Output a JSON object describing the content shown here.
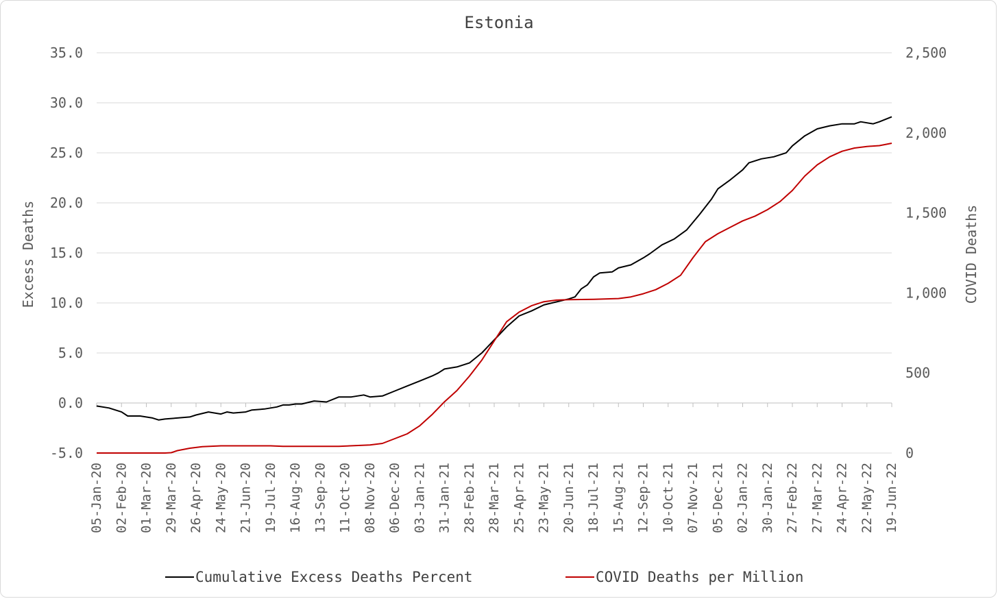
{
  "chart_data": {
    "type": "line",
    "title": "Estonia",
    "ylabel": "Excess Deaths",
    "y2label": "COVID Deaths",
    "ylim": [
      -5,
      35
    ],
    "y2lim": [
      0,
      2500
    ],
    "yticks": [
      "35.0",
      "30.0",
      "25.0",
      "20.0",
      "15.0",
      "10.0",
      "5.0",
      "0.0",
      "-5.0"
    ],
    "y2ticks": [
      "2,500",
      "2,000",
      "1,500",
      "1,000",
      "500",
      "0"
    ],
    "xlim": [
      "2020-01-05",
      "2022-06-19"
    ],
    "xticks": [
      "05-Jan-20",
      "02-Feb-20",
      "01-Mar-20",
      "29-Mar-20",
      "26-Apr-20",
      "24-May-20",
      "21-Jun-20",
      "19-Jul-20",
      "16-Aug-20",
      "13-Sep-20",
      "11-Oct-20",
      "08-Nov-20",
      "06-Dec-20",
      "03-Jan-21",
      "31-Jan-21",
      "28-Feb-21",
      "28-Mar-21",
      "25-Apr-21",
      "23-May-21",
      "20-Jun-21",
      "18-Jul-21",
      "15-Aug-21",
      "12-Sep-21",
      "10-Oct-21",
      "07-Nov-21",
      "05-Dec-21",
      "02-Jan-22",
      "30-Jan-22",
      "27-Feb-22",
      "27-Mar-22",
      "24-Apr-22",
      "22-May-22",
      "19-Jun-22"
    ],
    "grid": true,
    "legend_position": "bottom",
    "series": [
      {
        "name": "Cumulative Excess Deaths Percent",
        "axis": "left",
        "color": "#000000",
        "points": [
          [
            "2020-01-05",
            -0.3
          ],
          [
            "2020-01-19",
            -0.5
          ],
          [
            "2020-02-02",
            -0.9
          ],
          [
            "2020-02-09",
            -1.3
          ],
          [
            "2020-02-23",
            -1.3
          ],
          [
            "2020-03-08",
            -1.5
          ],
          [
            "2020-03-15",
            -1.7
          ],
          [
            "2020-03-22",
            -1.6
          ],
          [
            "2020-04-05",
            -1.5
          ],
          [
            "2020-04-19",
            -1.4
          ],
          [
            "2020-04-26",
            -1.2
          ],
          [
            "2020-05-10",
            -0.9
          ],
          [
            "2020-05-24",
            -1.1
          ],
          [
            "2020-05-31",
            -0.9
          ],
          [
            "2020-06-07",
            -1.0
          ],
          [
            "2020-06-21",
            -0.9
          ],
          [
            "2020-06-28",
            -0.7
          ],
          [
            "2020-07-12",
            -0.6
          ],
          [
            "2020-07-26",
            -0.4
          ],
          [
            "2020-08-02",
            -0.2
          ],
          [
            "2020-08-09",
            -0.2
          ],
          [
            "2020-08-16",
            -0.1
          ],
          [
            "2020-08-23",
            -0.1
          ],
          [
            "2020-09-06",
            0.2
          ],
          [
            "2020-09-20",
            0.1
          ],
          [
            "2020-10-04",
            0.6
          ],
          [
            "2020-10-18",
            0.6
          ],
          [
            "2020-11-01",
            0.8
          ],
          [
            "2020-11-08",
            0.6
          ],
          [
            "2020-11-22",
            0.7
          ],
          [
            "2020-12-06",
            1.2
          ],
          [
            "2020-12-20",
            1.7
          ],
          [
            "2021-01-03",
            2.2
          ],
          [
            "2021-01-17",
            2.7
          ],
          [
            "2021-01-24",
            3.0
          ],
          [
            "2021-01-31",
            3.4
          ],
          [
            "2021-02-14",
            3.6
          ],
          [
            "2021-02-28",
            4.0
          ],
          [
            "2021-03-14",
            5.0
          ],
          [
            "2021-03-28",
            6.3
          ],
          [
            "2021-04-11",
            7.6
          ],
          [
            "2021-04-25",
            8.7
          ],
          [
            "2021-05-09",
            9.2
          ],
          [
            "2021-05-23",
            9.8
          ],
          [
            "2021-06-06",
            10.1
          ],
          [
            "2021-06-20",
            10.4
          ],
          [
            "2021-06-27",
            10.6
          ],
          [
            "2021-07-04",
            11.4
          ],
          [
            "2021-07-11",
            11.8
          ],
          [
            "2021-07-18",
            12.6
          ],
          [
            "2021-07-25",
            13.0
          ],
          [
            "2021-08-08",
            13.1
          ],
          [
            "2021-08-15",
            13.5
          ],
          [
            "2021-08-29",
            13.8
          ],
          [
            "2021-09-12",
            14.5
          ],
          [
            "2021-09-19",
            14.9
          ],
          [
            "2021-10-03",
            15.8
          ],
          [
            "2021-10-17",
            16.4
          ],
          [
            "2021-10-31",
            17.3
          ],
          [
            "2021-11-14",
            18.8
          ],
          [
            "2021-11-28",
            20.4
          ],
          [
            "2021-12-05",
            21.4
          ],
          [
            "2021-12-19",
            22.3
          ],
          [
            "2022-01-02",
            23.3
          ],
          [
            "2022-01-09",
            24.0
          ],
          [
            "2022-01-23",
            24.4
          ],
          [
            "2022-02-06",
            24.6
          ],
          [
            "2022-02-20",
            25.0
          ],
          [
            "2022-02-27",
            25.7
          ],
          [
            "2022-03-13",
            26.7
          ],
          [
            "2022-03-27",
            27.4
          ],
          [
            "2022-04-10",
            27.7
          ],
          [
            "2022-04-24",
            27.9
          ],
          [
            "2022-05-08",
            27.9
          ],
          [
            "2022-05-15",
            28.1
          ],
          [
            "2022-05-29",
            27.9
          ],
          [
            "2022-06-05",
            28.1
          ],
          [
            "2022-06-19",
            28.6
          ]
        ]
      },
      {
        "name": "COVID Deaths per Million",
        "axis": "right",
        "color": "#c00000",
        "points": [
          [
            "2020-01-05",
            0
          ],
          [
            "2020-03-22",
            0
          ],
          [
            "2020-03-29",
            2
          ],
          [
            "2020-04-05",
            15
          ],
          [
            "2020-04-19",
            30
          ],
          [
            "2020-05-03",
            40
          ],
          [
            "2020-05-24",
            45
          ],
          [
            "2020-07-19",
            45
          ],
          [
            "2020-08-02",
            42
          ],
          [
            "2020-10-04",
            42
          ],
          [
            "2020-11-08",
            50
          ],
          [
            "2020-11-22",
            60
          ],
          [
            "2020-12-06",
            90
          ],
          [
            "2020-12-20",
            120
          ],
          [
            "2021-01-03",
            170
          ],
          [
            "2021-01-17",
            240
          ],
          [
            "2021-01-31",
            320
          ],
          [
            "2021-02-14",
            390
          ],
          [
            "2021-02-28",
            480
          ],
          [
            "2021-03-14",
            580
          ],
          [
            "2021-03-28",
            700
          ],
          [
            "2021-04-11",
            820
          ],
          [
            "2021-04-25",
            880
          ],
          [
            "2021-05-09",
            920
          ],
          [
            "2021-05-23",
            945
          ],
          [
            "2021-06-06",
            955
          ],
          [
            "2021-06-20",
            958
          ],
          [
            "2021-07-18",
            960
          ],
          [
            "2021-08-15",
            965
          ],
          [
            "2021-08-29",
            975
          ],
          [
            "2021-09-12",
            995
          ],
          [
            "2021-09-26",
            1020
          ],
          [
            "2021-10-10",
            1060
          ],
          [
            "2021-10-24",
            1110
          ],
          [
            "2021-11-07",
            1220
          ],
          [
            "2021-11-21",
            1320
          ],
          [
            "2021-12-05",
            1370
          ],
          [
            "2021-12-19",
            1410
          ],
          [
            "2022-01-02",
            1450
          ],
          [
            "2022-01-16",
            1480
          ],
          [
            "2022-01-30",
            1520
          ],
          [
            "2022-02-13",
            1570
          ],
          [
            "2022-02-27",
            1640
          ],
          [
            "2022-03-13",
            1730
          ],
          [
            "2022-03-27",
            1800
          ],
          [
            "2022-04-10",
            1850
          ],
          [
            "2022-04-24",
            1885
          ],
          [
            "2022-05-08",
            1905
          ],
          [
            "2022-05-22",
            1915
          ],
          [
            "2022-06-05",
            1920
          ],
          [
            "2022-06-19",
            1935
          ]
        ]
      }
    ]
  }
}
